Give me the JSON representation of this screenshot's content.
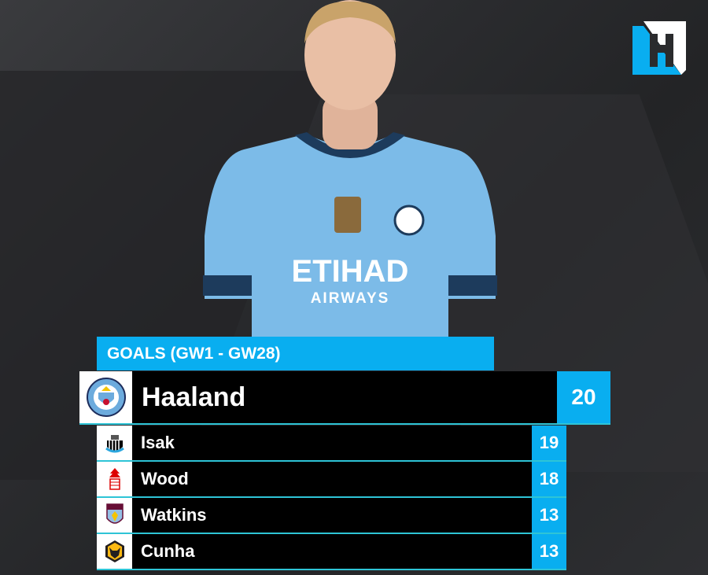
{
  "brand": {
    "logo_letter": "H",
    "accent": "#09aef0"
  },
  "player_photo": {
    "sponsor": "ETIHAD",
    "sponsor_sub": "AIRWAYS",
    "shirt_color": "#7cbbe8"
  },
  "header": {
    "title": "GOALS (GW1 - GW28)"
  },
  "leader": {
    "name": "Haaland",
    "goals": "20",
    "club_icon": "manchester-city-crest"
  },
  "rows": [
    {
      "name": "Isak",
      "goals": "19",
      "club_icon": "newcastle-crest"
    },
    {
      "name": "Wood",
      "goals": "18",
      "club_icon": "nottingham-forest-crest"
    },
    {
      "name": "Watkins",
      "goals": "13",
      "club_icon": "aston-villa-crest"
    },
    {
      "name": "Cunha",
      "goals": "13",
      "club_icon": "wolves-crest"
    }
  ]
}
